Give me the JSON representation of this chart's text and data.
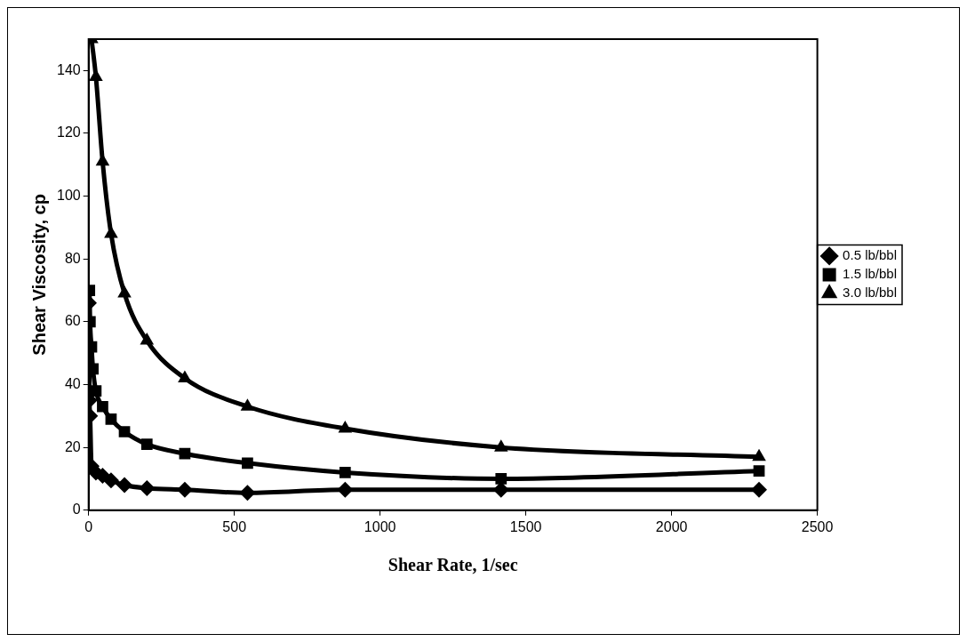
{
  "chart_data": {
    "type": "line",
    "xlabel": "Shear Rate, 1/sec",
    "ylabel": "Shear Viscosity, cp",
    "xlim": [
      0,
      2500
    ],
    "xticks": [
      0,
      500,
      1000,
      1500,
      2000,
      2500
    ],
    "ylim": [
      0,
      150
    ],
    "yticks": [
      0,
      20,
      40,
      60,
      80,
      100,
      120,
      140
    ],
    "grid": false,
    "legend": "right",
    "line_style": "solid",
    "series": [
      {
        "name": "0.5 lb/bbl",
        "color": "#000000",
        "marker": "diamond",
        "x": [
          1,
          3,
          5,
          10,
          25,
          48,
          77,
          123,
          200,
          330,
          545,
          880,
          1415,
          2300
        ],
        "values": [
          66,
          35,
          30,
          14,
          12,
          11,
          9.5,
          8,
          7,
          6.5,
          5.5,
          6.5,
          6.5,
          6.5
        ]
      },
      {
        "name": "1.5 lb/bbl",
        "color": "#000000",
        "marker": "square",
        "x": [
          3,
          5,
          10,
          15,
          25,
          48,
          77,
          123,
          200,
          330,
          545,
          880,
          1415,
          2300
        ],
        "values": [
          70,
          60,
          52,
          45,
          38,
          33,
          29,
          25,
          21,
          18,
          15,
          12,
          10,
          12.5
        ]
      },
      {
        "name": "3.0 lb/bbl",
        "color": "#000000",
        "marker": "triangle",
        "x": [
          10,
          25,
          48,
          77,
          123,
          200,
          330,
          545,
          880,
          1415,
          2300
        ],
        "values": [
          150,
          138,
          111,
          88,
          69,
          54,
          42,
          33,
          26,
          20,
          17
        ]
      }
    ]
  }
}
